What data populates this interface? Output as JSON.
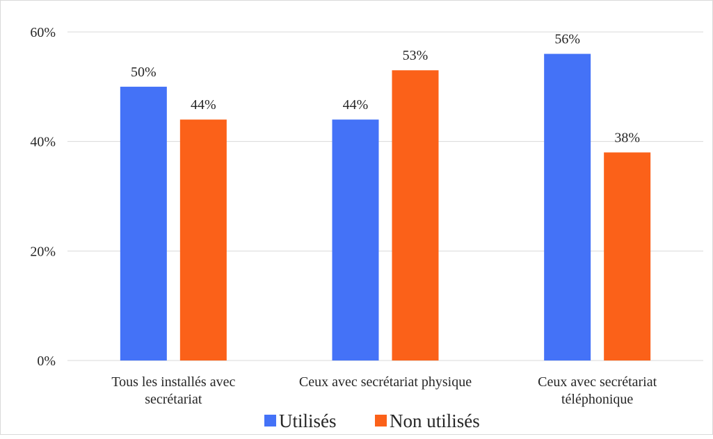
{
  "chart_data": {
    "type": "bar",
    "title": "",
    "xlabel": "",
    "ylabel": "",
    "categories": [
      [
        "Tous les installés avec",
        "secrétariat"
      ],
      [
        "Ceux avec secrétariat physique"
      ],
      [
        "Ceux avec secrétariat",
        "téléphonique"
      ]
    ],
    "series": [
      {
        "name": "Utilisés",
        "values": [
          50,
          44,
          56
        ],
        "color": "#4472F7"
      },
      {
        "name": "Non utilisés",
        "values": [
          44,
          53,
          38
        ],
        "color": "#FB6119"
      }
    ],
    "ylim": [
      0,
      60
    ],
    "yticks": [
      0,
      20,
      40,
      60
    ],
    "value_suffix": "%",
    "grid": true,
    "legend_position": "bottom"
  }
}
